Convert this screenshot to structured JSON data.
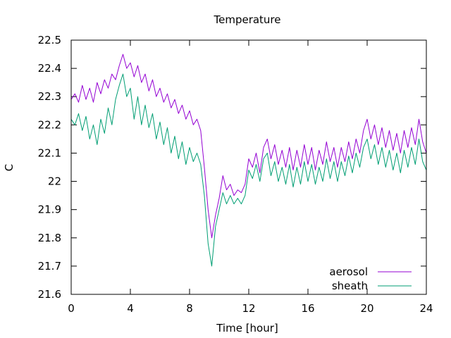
{
  "chart_data": {
    "type": "line",
    "title": "Temperature",
    "xlabel": "Time [hour]",
    "ylabel": "C",
    "xlim": [
      0,
      24
    ],
    "ylim": [
      21.6,
      22.5
    ],
    "xticks": [
      0,
      4,
      8,
      12,
      16,
      20,
      24
    ],
    "xtick_labels": [
      "0",
      "4",
      "8",
      "12",
      "16",
      "20",
      "24"
    ],
    "yticks": [
      21.6,
      21.7,
      21.8,
      21.9,
      22.0,
      22.1,
      22.2,
      22.3,
      22.4,
      22.5
    ],
    "ytick_labels": [
      "21.6",
      "21.7",
      "21.8",
      "21.9",
      "22",
      "22.1",
      "22.2",
      "22.3",
      "22.4",
      "22.5"
    ],
    "grid": false,
    "legend_position": "bottom-right",
    "series": [
      {
        "name": "aerosol",
        "color": "#9400d3",
        "x": [
          0,
          0.25,
          0.5,
          0.75,
          1,
          1.25,
          1.5,
          1.75,
          2,
          2.25,
          2.5,
          2.75,
          3,
          3.25,
          3.5,
          3.75,
          4,
          4.25,
          4.5,
          4.75,
          5,
          5.25,
          5.5,
          5.75,
          6,
          6.25,
          6.5,
          6.75,
          7,
          7.25,
          7.5,
          7.75,
          8,
          8.25,
          8.5,
          8.75,
          9,
          9.25,
          9.5,
          9.75,
          10,
          10.25,
          10.5,
          10.75,
          11,
          11.25,
          11.5,
          11.75,
          12,
          12.25,
          12.5,
          12.75,
          13,
          13.25,
          13.5,
          13.75,
          14,
          14.25,
          14.5,
          14.75,
          15,
          15.25,
          15.5,
          15.75,
          16,
          16.25,
          16.5,
          16.75,
          17,
          17.25,
          17.5,
          17.75,
          18,
          18.25,
          18.5,
          18.75,
          19,
          19.25,
          19.5,
          19.75,
          20,
          20.25,
          20.5,
          20.75,
          21,
          21.25,
          21.5,
          21.75,
          22,
          22.25,
          22.5,
          22.75,
          23,
          23.25,
          23.5,
          23.75,
          24
        ],
        "y": [
          22.29,
          22.31,
          22.28,
          22.34,
          22.29,
          22.33,
          22.28,
          22.35,
          22.31,
          22.36,
          22.33,
          22.38,
          22.36,
          22.41,
          22.45,
          22.4,
          22.42,
          22.37,
          22.41,
          22.35,
          22.38,
          22.32,
          22.36,
          22.3,
          22.33,
          22.28,
          22.31,
          22.26,
          22.29,
          22.24,
          22.27,
          22.22,
          22.25,
          22.2,
          22.22,
          22.18,
          22.05,
          21.9,
          21.8,
          21.88,
          21.94,
          22.02,
          21.97,
          21.99,
          21.95,
          21.97,
          21.96,
          21.99,
          22.08,
          22.05,
          22.1,
          22.03,
          22.12,
          22.15,
          22.08,
          22.13,
          22.06,
          22.11,
          22.05,
          22.12,
          22.04,
          22.11,
          22.05,
          22.13,
          22.06,
          22.12,
          22.04,
          22.11,
          22.06,
          22.14,
          22.07,
          22.12,
          22.05,
          22.12,
          22.07,
          22.14,
          22.08,
          22.15,
          22.1,
          22.18,
          22.22,
          22.15,
          22.2,
          22.13,
          22.19,
          22.12,
          22.18,
          22.11,
          22.17,
          22.1,
          22.18,
          22.12,
          22.19,
          22.13,
          22.22,
          22.14,
          22.1
        ]
      },
      {
        "name": "sheath",
        "color": "#009e73",
        "x": [
          0,
          0.25,
          0.5,
          0.75,
          1,
          1.25,
          1.5,
          1.75,
          2,
          2.25,
          2.5,
          2.75,
          3,
          3.25,
          3.5,
          3.75,
          4,
          4.25,
          4.5,
          4.75,
          5,
          5.25,
          5.5,
          5.75,
          6,
          6.25,
          6.5,
          6.75,
          7,
          7.25,
          7.5,
          7.75,
          8,
          8.25,
          8.5,
          8.75,
          9,
          9.25,
          9.5,
          9.75,
          10,
          10.25,
          10.5,
          10.75,
          11,
          11.25,
          11.5,
          11.75,
          12,
          12.25,
          12.5,
          12.75,
          13,
          13.25,
          13.5,
          13.75,
          14,
          14.25,
          14.5,
          14.75,
          15,
          15.25,
          15.5,
          15.75,
          16,
          16.25,
          16.5,
          16.75,
          17,
          17.25,
          17.5,
          17.75,
          18,
          18.25,
          18.5,
          18.75,
          19,
          19.25,
          19.5,
          19.75,
          20,
          20.25,
          20.5,
          20.75,
          21,
          21.25,
          21.5,
          21.75,
          22,
          22.25,
          22.5,
          22.75,
          23,
          23.25,
          23.5,
          23.75,
          24
        ],
        "y": [
          22.22,
          22.2,
          22.24,
          22.18,
          22.23,
          22.15,
          22.2,
          22.13,
          22.22,
          22.17,
          22.26,
          22.2,
          22.29,
          22.34,
          22.38,
          22.3,
          22.33,
          22.22,
          22.3,
          22.2,
          22.27,
          22.19,
          22.24,
          22.15,
          22.21,
          22.13,
          22.19,
          22.1,
          22.16,
          22.08,
          22.14,
          22.06,
          22.12,
          22.07,
          22.1,
          22.06,
          21.95,
          21.78,
          21.7,
          21.84,
          21.9,
          21.96,
          21.92,
          21.95,
          21.92,
          21.94,
          21.92,
          21.95,
          22.04,
          22.01,
          22.06,
          22.0,
          22.08,
          22.1,
          22.02,
          22.07,
          22.0,
          22.05,
          21.99,
          22.06,
          21.98,
          22.05,
          21.99,
          22.07,
          22.0,
          22.06,
          21.99,
          22.05,
          22.0,
          22.08,
          22.01,
          22.07,
          22.0,
          22.07,
          22.02,
          22.09,
          22.03,
          22.1,
          22.05,
          22.12,
          22.15,
          22.08,
          22.13,
          22.06,
          22.12,
          22.05,
          22.11,
          22.04,
          22.1,
          22.03,
          22.11,
          22.05,
          22.12,
          22.06,
          22.15,
          22.07,
          22.04
        ]
      }
    ]
  }
}
